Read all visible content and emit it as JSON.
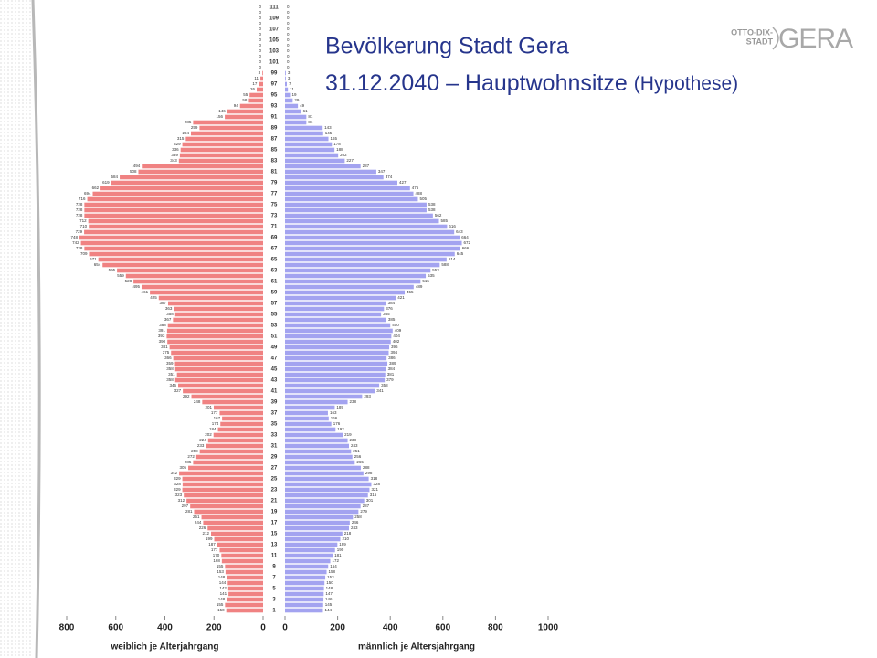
{
  "chart_data": {
    "type": "pyramid",
    "title": "Bevölkerung Stadt Gera",
    "subtitle": "31.12.2040 – Hauptwohnsitze",
    "subtitle_note": "(Hypothese)",
    "logo": {
      "line1": "OTTO-DIX-",
      "line2": "STADT",
      "name": "GERA"
    },
    "categories": [
      "1",
      null,
      "3",
      null,
      "5",
      null,
      "7",
      null,
      "9",
      null,
      "11",
      null,
      "13",
      null,
      "15",
      null,
      "17",
      null,
      "19",
      null,
      "21",
      null,
      "23",
      null,
      "25",
      null,
      "27",
      null,
      "29",
      null,
      "31",
      null,
      "33",
      null,
      "35",
      null,
      "37",
      null,
      "39",
      null,
      "41",
      null,
      "43",
      null,
      "45",
      null,
      "47",
      null,
      "49",
      null,
      "51",
      null,
      "53",
      null,
      "55",
      null,
      "57",
      null,
      "59",
      null,
      "61",
      null,
      "63",
      null,
      "65",
      null,
      "67",
      null,
      "69",
      null,
      "71",
      null,
      "73",
      null,
      "75",
      null,
      "77",
      null,
      "79",
      null,
      "81",
      null,
      "83",
      null,
      "85",
      null,
      "87",
      null,
      "89",
      null,
      "91",
      null,
      "93",
      null,
      "95",
      null,
      "97",
      null,
      "99",
      null,
      "101",
      null,
      "103",
      null,
      "105",
      null,
      "107",
      null,
      "109",
      null,
      "111"
    ],
    "series": [
      {
        "name": "weiblich je Alterjahrgang",
        "color": "#f08282",
        "side": "left",
        "xlim": [
          0,
          800
        ],
        "xticks": [
          800,
          600,
          400,
          200,
          0
        ],
        "values": [
          150,
          155,
          148,
          141,
          142,
          144,
          148,
          153,
          155,
          168,
          170,
          177,
          187,
          199,
          212,
          226,
          244,
          251,
          281,
          297,
          312,
          323,
          329,
          328,
          329,
          342,
          305,
          285,
          272,
          258,
          233,
          224,
          202,
          184,
          174,
          167,
          177,
          201,
          248,
          292,
          327,
          346,
          358,
          351,
          358,
          359,
          366,
          375,
          381,
          390,
          393,
          391,
          388,
          367,
          358,
          363,
          387,
          425,
          461,
          495,
          528,
          559,
          595,
          654,
          671,
          709,
          728,
          742,
          748,
          729,
          710,
          712,
          728,
          728,
          728,
          716,
          694,
          662,
          619,
          584,
          508,
          494,
          343,
          339,
          336,
          329,
          315,
          294,
          259,
          285,
          156,
          146,
          94,
          58,
          55,
          26,
          17,
          11,
          3,
          0,
          0,
          0,
          0,
          0,
          0,
          0,
          0,
          0,
          0,
          0,
          0
        ]
      },
      {
        "name": "männlich je Altersjahrgang",
        "color": "#a3a3f0",
        "side": "right",
        "xlim": [
          0,
          1000
        ],
        "xticks": [
          0,
          200,
          400,
          600,
          800,
          1000
        ],
        "values": [
          144,
          145,
          146,
          147,
          148,
          150,
          153,
          158,
          164,
          172,
          181,
          190,
          199,
          210,
          218,
          243,
          246,
          258,
          279,
          287,
          301,
          315,
          321,
          328,
          318,
          298,
          288,
          265,
          256,
          251,
          243,
          238,
          219,
          192,
          176,
          166,
          163,
          189,
          238,
          293,
          341,
          358,
          379,
          381,
          384,
          389,
          386,
          394,
          396,
          402,
          404,
          409,
          400,
          385,
          365,
          376,
          384,
          421,
          455,
          489,
          515,
          535,
          553,
          588,
          614,
          645,
          666,
          672,
          664,
          643,
          616,
          585,
          562,
          538,
          538,
          505,
          488,
          475,
          427,
          374,
          347,
          287,
          227,
          202,
          188,
          178,
          165,
          145,
          143,
          81,
          81,
          61,
          49,
          29,
          19,
          11,
          7,
          3,
          3,
          0,
          0,
          0,
          0,
          0,
          0,
          0,
          0,
          0,
          0,
          0,
          0
        ]
      }
    ]
  }
}
